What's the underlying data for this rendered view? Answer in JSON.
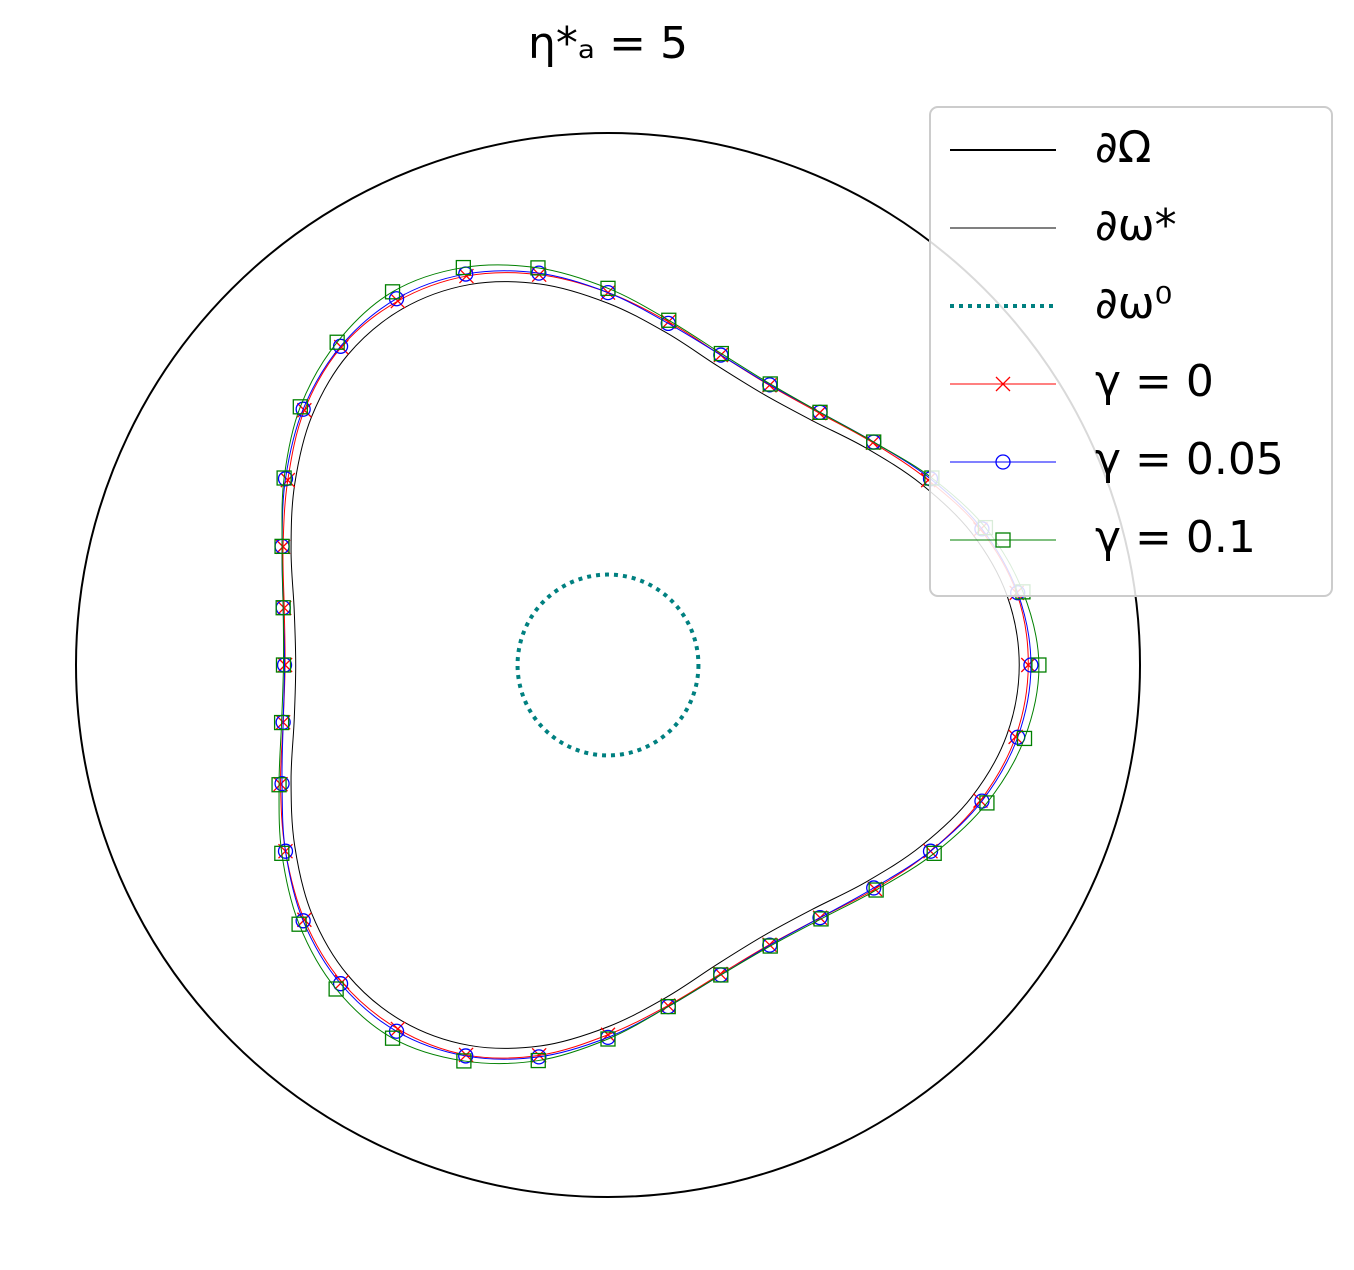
{
  "chart_data": {
    "type": "polar-shape",
    "title": "η*ₐ = 5",
    "theta": [
      0,
      10,
      20,
      30,
      40,
      50,
      60,
      70,
      80,
      90,
      100,
      110,
      120,
      130,
      140,
      150,
      160,
      170,
      180,
      190,
      200,
      210,
      220,
      230,
      240,
      250,
      260,
      270,
      280,
      290,
      300,
      310,
      320,
      330,
      340,
      350
    ],
    "series": [
      {
        "name": "∂Ω",
        "color": "#000000",
        "style": "solid",
        "width": 2,
        "radius": 1
      },
      {
        "name": "∂ω*",
        "color": "#000000",
        "style": "solid",
        "width": 1,
        "r": [
          0.773,
          0.761,
          0.727,
          0.68,
          0.634,
          0.599,
          0.587,
          0.599,
          0.634,
          0.68,
          0.727,
          0.761,
          0.773,
          0.761,
          0.727,
          0.68,
          0.634,
          0.599,
          0.587,
          0.599,
          0.634,
          0.68,
          0.727,
          0.761,
          0.773,
          0.761,
          0.727,
          0.68,
          0.634,
          0.599,
          0.587,
          0.599,
          0.634,
          0.68,
          0.727,
          0.761
        ]
      },
      {
        "name": "∂ω⁰",
        "color": "#008080",
        "style": "dotted",
        "width": 4,
        "radius": 0.17
      },
      {
        "name": "γ = 0",
        "color": "#ff0000",
        "style": "solid",
        "width": 1,
        "marker": "x",
        "r": [
          0.79,
          0.78,
          0.745,
          0.695,
          0.65,
          0.618,
          0.607,
          0.62,
          0.655,
          0.7,
          0.745,
          0.778,
          0.79,
          0.78,
          0.745,
          0.695,
          0.65,
          0.618,
          0.607,
          0.62,
          0.655,
          0.7,
          0.745,
          0.778,
          0.79,
          0.78,
          0.745,
          0.695,
          0.65,
          0.618,
          0.607,
          0.62,
          0.655,
          0.7,
          0.745,
          0.778
        ]
      },
      {
        "name": "γ = 0.05",
        "color": "#0000ff",
        "style": "solid",
        "width": 1,
        "marker": "circle",
        "r": [
          0.795,
          0.782,
          0.748,
          0.7,
          0.652,
          0.62,
          0.608,
          0.62,
          0.652,
          0.7,
          0.748,
          0.782,
          0.795,
          0.782,
          0.748,
          0.7,
          0.652,
          0.62,
          0.608,
          0.62,
          0.652,
          0.7,
          0.748,
          0.782,
          0.795,
          0.782,
          0.748,
          0.7,
          0.652,
          0.62,
          0.608,
          0.62,
          0.652,
          0.7,
          0.748,
          0.782
        ]
      },
      {
        "name": "γ = 0.1",
        "color": "#008000",
        "style": "solid",
        "width": 1,
        "marker": "square",
        "r": [
          0.81,
          0.792,
          0.755,
          0.703,
          0.652,
          0.62,
          0.61,
          0.623,
          0.658,
          0.708,
          0.758,
          0.795,
          0.81,
          0.792,
          0.755,
          0.703,
          0.652,
          0.62,
          0.61,
          0.623,
          0.658,
          0.708,
          0.758,
          0.795,
          0.81,
          0.792,
          0.755,
          0.703,
          0.652,
          0.62,
          0.61,
          0.623,
          0.658,
          0.708,
          0.758,
          0.795
        ]
      }
    ],
    "legend": "upper right"
  }
}
